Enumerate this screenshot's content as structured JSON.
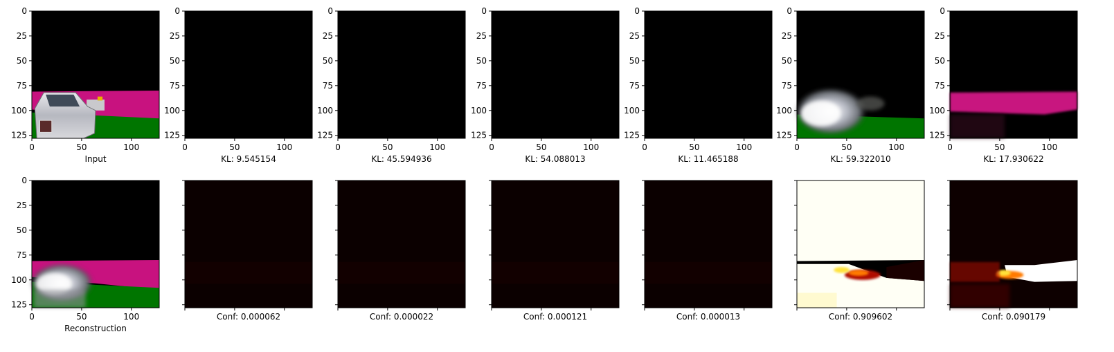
{
  "figure": {
    "axis": {
      "x_ticks": [
        "0",
        "50",
        "100"
      ],
      "y_ticks": [
        "0",
        "25",
        "50",
        "75",
        "100",
        "125"
      ]
    },
    "row1": [
      {
        "caption": "Input",
        "content": "scene-input"
      },
      {
        "caption": "KL: 9.545154",
        "content": "black"
      },
      {
        "caption": "KL: 45.594936",
        "content": "black"
      },
      {
        "caption": "KL: 54.088013",
        "content": "black"
      },
      {
        "caption": "KL: 11.465188",
        "content": "black"
      },
      {
        "caption": "KL: 59.322010",
        "content": "scene-component-car"
      },
      {
        "caption": "KL: 17.930622",
        "content": "scene-component-road"
      }
    ],
    "row2": [
      {
        "caption": "Reconstruction",
        "content": "scene-reconstruction"
      },
      {
        "caption": "Conf: 0.000062",
        "content": "heatmap-dark"
      },
      {
        "caption": "Conf: 0.000022",
        "content": "heatmap-dark"
      },
      {
        "caption": "Conf: 0.000121",
        "content": "heatmap-dark"
      },
      {
        "caption": "Conf: 0.000013",
        "content": "heatmap-dark"
      },
      {
        "caption": "Conf: 0.909602",
        "content": "heatmap-bright"
      },
      {
        "caption": "Conf: 0.090179",
        "content": "heatmap-inverse"
      }
    ],
    "colors": {
      "black": "#000000",
      "magenta": "#c8127f",
      "green": "#007500",
      "dark_heat": "#0b0000",
      "hot_white": "#fffff5",
      "hot_yellow": "#ffe23a",
      "hot_orange": "#ff7a00",
      "hot_red": "#b01000"
    }
  }
}
